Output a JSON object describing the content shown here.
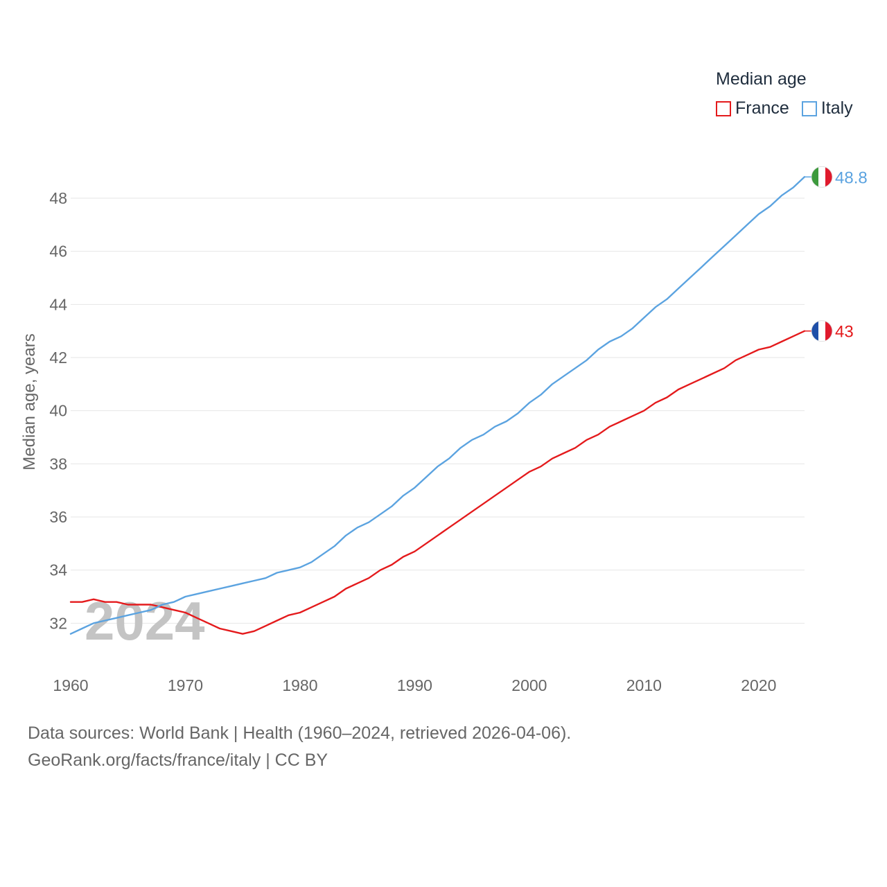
{
  "chart_data": {
    "type": "line",
    "ylabel": "Median age, years",
    "xlabel": "",
    "xlim": [
      1960,
      2024
    ],
    "ylim": [
      30.6,
      49.2
    ],
    "x_ticks": [
      1960,
      1970,
      1980,
      1990,
      2000,
      2010,
      2020
    ],
    "y_ticks": [
      32,
      34,
      36,
      38,
      40,
      42,
      44,
      46,
      48
    ],
    "grid": true,
    "year_overlay": "2024",
    "legend": {
      "title": "Median age",
      "position": "top-right"
    },
    "series": [
      {
        "name": "France",
        "color": "#e41a1c",
        "end_label": "43",
        "flag": "france-flag-icon",
        "points": [
          [
            1960,
            32.8
          ],
          [
            1961,
            32.8
          ],
          [
            1962,
            32.9
          ],
          [
            1963,
            32.8
          ],
          [
            1964,
            32.8
          ],
          [
            1965,
            32.7
          ],
          [
            1966,
            32.7
          ],
          [
            1967,
            32.7
          ],
          [
            1968,
            32.6
          ],
          [
            1969,
            32.5
          ],
          [
            1970,
            32.4
          ],
          [
            1971,
            32.2
          ],
          [
            1972,
            32.0
          ],
          [
            1973,
            31.8
          ],
          [
            1974,
            31.7
          ],
          [
            1975,
            31.6
          ],
          [
            1976,
            31.7
          ],
          [
            1977,
            31.9
          ],
          [
            1978,
            32.1
          ],
          [
            1979,
            32.3
          ],
          [
            1980,
            32.4
          ],
          [
            1981,
            32.6
          ],
          [
            1982,
            32.8
          ],
          [
            1983,
            33.0
          ],
          [
            1984,
            33.3
          ],
          [
            1985,
            33.5
          ],
          [
            1986,
            33.7
          ],
          [
            1987,
            34.0
          ],
          [
            1988,
            34.2
          ],
          [
            1989,
            34.5
          ],
          [
            1990,
            34.7
          ],
          [
            1991,
            35.0
          ],
          [
            1992,
            35.3
          ],
          [
            1993,
            35.6
          ],
          [
            1994,
            35.9
          ],
          [
            1995,
            36.2
          ],
          [
            1996,
            36.5
          ],
          [
            1997,
            36.8
          ],
          [
            1998,
            37.1
          ],
          [
            1999,
            37.4
          ],
          [
            2000,
            37.7
          ],
          [
            2001,
            37.9
          ],
          [
            2002,
            38.2
          ],
          [
            2003,
            38.4
          ],
          [
            2004,
            38.6
          ],
          [
            2005,
            38.9
          ],
          [
            2006,
            39.1
          ],
          [
            2007,
            39.4
          ],
          [
            2008,
            39.6
          ],
          [
            2009,
            39.8
          ],
          [
            2010,
            40.0
          ],
          [
            2011,
            40.3
          ],
          [
            2012,
            40.5
          ],
          [
            2013,
            40.8
          ],
          [
            2014,
            41.0
          ],
          [
            2015,
            41.2
          ],
          [
            2016,
            41.4
          ],
          [
            2017,
            41.6
          ],
          [
            2018,
            41.9
          ],
          [
            2019,
            42.1
          ],
          [
            2020,
            42.3
          ],
          [
            2021,
            42.4
          ],
          [
            2022,
            42.6
          ],
          [
            2023,
            42.8
          ],
          [
            2024,
            43.0
          ]
        ]
      },
      {
        "name": "Italy",
        "color": "#5ba3e0",
        "end_label": "48.8",
        "flag": "italy-flag-icon",
        "points": [
          [
            1960,
            31.6
          ],
          [
            1961,
            31.8
          ],
          [
            1962,
            32.0
          ],
          [
            1963,
            32.1
          ],
          [
            1964,
            32.2
          ],
          [
            1965,
            32.3
          ],
          [
            1966,
            32.4
          ],
          [
            1967,
            32.5
          ],
          [
            1968,
            32.7
          ],
          [
            1969,
            32.8
          ],
          [
            1970,
            33.0
          ],
          [
            1971,
            33.1
          ],
          [
            1972,
            33.2
          ],
          [
            1973,
            33.3
          ],
          [
            1974,
            33.4
          ],
          [
            1975,
            33.5
          ],
          [
            1976,
            33.6
          ],
          [
            1977,
            33.7
          ],
          [
            1978,
            33.9
          ],
          [
            1979,
            34.0
          ],
          [
            1980,
            34.1
          ],
          [
            1981,
            34.3
          ],
          [
            1982,
            34.6
          ],
          [
            1983,
            34.9
          ],
          [
            1984,
            35.3
          ],
          [
            1985,
            35.6
          ],
          [
            1986,
            35.8
          ],
          [
            1987,
            36.1
          ],
          [
            1988,
            36.4
          ],
          [
            1989,
            36.8
          ],
          [
            1990,
            37.1
          ],
          [
            1991,
            37.5
          ],
          [
            1992,
            37.9
          ],
          [
            1993,
            38.2
          ],
          [
            1994,
            38.6
          ],
          [
            1995,
            38.9
          ],
          [
            1996,
            39.1
          ],
          [
            1997,
            39.4
          ],
          [
            1998,
            39.6
          ],
          [
            1999,
            39.9
          ],
          [
            2000,
            40.3
          ],
          [
            2001,
            40.6
          ],
          [
            2002,
            41.0
          ],
          [
            2003,
            41.3
          ],
          [
            2004,
            41.6
          ],
          [
            2005,
            41.9
          ],
          [
            2006,
            42.3
          ],
          [
            2007,
            42.6
          ],
          [
            2008,
            42.8
          ],
          [
            2009,
            43.1
          ],
          [
            2010,
            43.5
          ],
          [
            2011,
            43.9
          ],
          [
            2012,
            44.2
          ],
          [
            2013,
            44.6
          ],
          [
            2014,
            45.0
          ],
          [
            2015,
            45.4
          ],
          [
            2016,
            45.8
          ],
          [
            2017,
            46.2
          ],
          [
            2018,
            46.6
          ],
          [
            2019,
            47.0
          ],
          [
            2020,
            47.4
          ],
          [
            2021,
            47.7
          ],
          [
            2022,
            48.1
          ],
          [
            2023,
            48.4
          ],
          [
            2024,
            48.8
          ]
        ]
      }
    ]
  },
  "footer": {
    "line1": "Data sources: World Bank | Health (1960–2024, retrieved 2026-04-06).",
    "line2": "GeoRank.org/facts/france/italy | CC BY"
  }
}
